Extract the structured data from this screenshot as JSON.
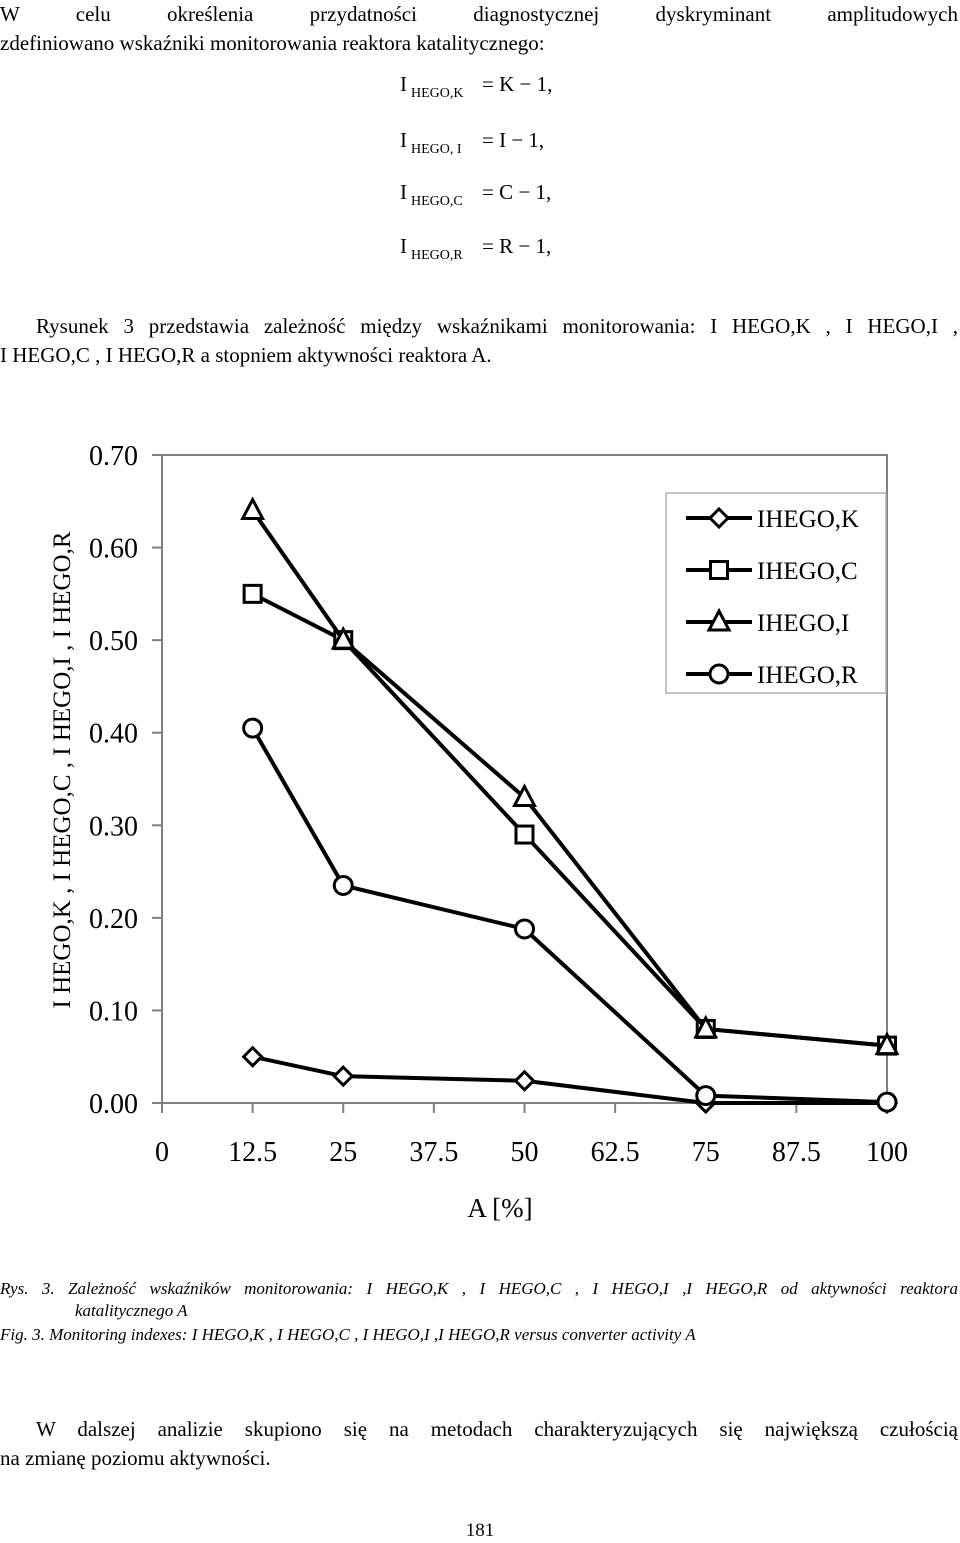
{
  "intro": {
    "line1": "W celu określenia przydatności diagnostycznej dyskryminant amplitudowych",
    "line2": "zdefiniowano wskaźniki monitorowania reaktora katalitycznego:"
  },
  "equations": [
    {
      "lhs": "I",
      "sub": "HEGO,K",
      "rhs": "= K − 1,"
    },
    {
      "lhs": "I",
      "sub": "HEGO, I",
      "rhs": "= I − 1,"
    },
    {
      "lhs": "I",
      "sub": "HEGO,C",
      "rhs": "= C − 1,"
    },
    {
      "lhs": "I",
      "sub": "HEGO,R",
      "rhs": "= R − 1,"
    }
  ],
  "description": {
    "line1": "Rysunek 3 przedstawia zależność między wskaźnikami monitorowania: I HEGO,K , I HEGO,I ,",
    "line2": "I HEGO,C , I HEGO,R a stopniem aktywności reaktora A."
  },
  "chart_data": {
    "type": "line",
    "xlabel": "A [%]",
    "ylabel": "I HEGO,K , I HEGO,C , I HEGO,I , I HEGO,R",
    "x_ticks": [
      "0",
      "12.5",
      "25",
      "37.5",
      "50",
      "62.5",
      "75",
      "87.5",
      "100"
    ],
    "y_ticks": [
      "0.00",
      "0.10",
      "0.20",
      "0.30",
      "0.40",
      "0.50",
      "0.60",
      "0.70"
    ],
    "xlim": [
      0,
      100
    ],
    "ylim": [
      0,
      0.7
    ],
    "grid": false,
    "legend_position": "top-right",
    "x": [
      12.5,
      25,
      50,
      75,
      100
    ],
    "series": [
      {
        "name": "IHEGO,K",
        "marker": "diamond",
        "values": [
          0.05,
          0.029,
          0.024,
          0.0,
          0.0
        ]
      },
      {
        "name": "IHEGO,C",
        "marker": "square",
        "values": [
          0.55,
          0.5,
          0.29,
          0.08,
          0.062
        ]
      },
      {
        "name": "IHEGO,I",
        "marker": "triangle",
        "values": [
          0.64,
          0.5,
          0.33,
          0.08,
          0.062
        ]
      },
      {
        "name": "IHEGO,R",
        "marker": "circle",
        "values": [
          0.405,
          0.235,
          0.188,
          0.008,
          0.001
        ]
      }
    ]
  },
  "caption": {
    "pl_line1": "Rys. 3. Zależność wskaźników monitorowania: I HEGO,K , I HEGO,C , I HEGO,I ,I HEGO,R od aktywności reaktora",
    "pl_line2": "katalitycznego A",
    "en": "Fig. 3. Monitoring indexes: I HEGO,K , I HEGO,C , I HEGO,I ,I HEGO,R versus converter activity A"
  },
  "conclusion": {
    "line1": "W dalszej analizie skupiono się na metodach charakteryzujących się największą czułością",
    "line2": "na zmianę poziomu aktywności."
  },
  "page_number": "181"
}
